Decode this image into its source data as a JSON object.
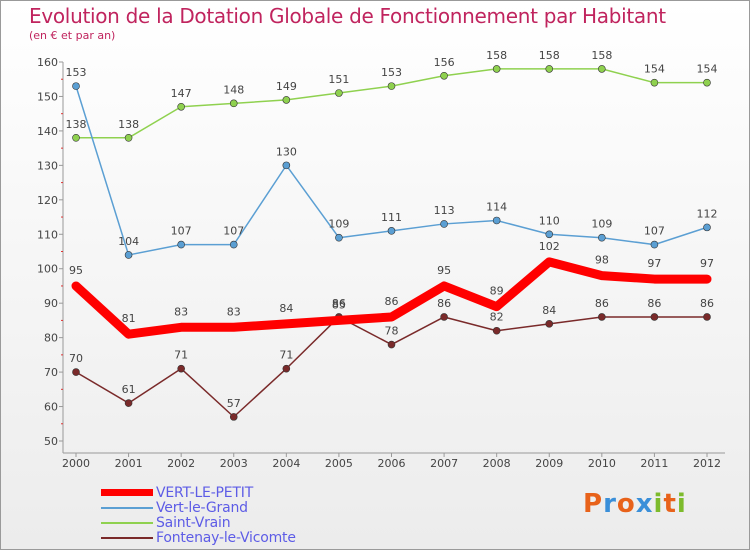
{
  "title": "Evolution de la Dotation Globale de Fonctionnement par Habitant",
  "subtitle": "(en € et par an)",
  "brand": {
    "text": "Proxiti",
    "letters": [
      "P",
      "r",
      "o",
      "x",
      "i",
      "t",
      "i"
    ],
    "colors": [
      "#e8621a",
      "#3a8fd9",
      "#e8621a",
      "#3a8fd9",
      "#7dbb2c",
      "#e8621a",
      "#7dbb2c"
    ]
  },
  "chart_data": {
    "type": "line",
    "x": [
      2000,
      2001,
      2002,
      2003,
      2004,
      2005,
      2006,
      2007,
      2008,
      2009,
      2010,
      2011,
      2012
    ],
    "ylim": [
      50,
      160
    ],
    "yticks": [
      50,
      60,
      70,
      80,
      90,
      100,
      110,
      120,
      130,
      140,
      150,
      160
    ],
    "grid": false,
    "legend": "bottom-left",
    "series": [
      {
        "name": "VERT-LE-PETIT",
        "color": "#ff0000",
        "values": [
          95,
          81,
          83,
          83,
          84,
          85,
          86,
          95,
          89,
          102,
          98,
          97,
          97
        ]
      },
      {
        "name": "Vert-le-Grand",
        "color": "#5b9fd3",
        "values": [
          153,
          104,
          107,
          107,
          130,
          109,
          111,
          113,
          114,
          110,
          109,
          107,
          112
        ]
      },
      {
        "name": "Saint-Vrain",
        "color": "#8fd14f",
        "values": [
          138,
          138,
          147,
          148,
          149,
          151,
          153,
          156,
          158,
          158,
          158,
          154,
          154
        ]
      },
      {
        "name": "Fontenay-le-Vicomte",
        "color": "#7a2a2a",
        "values": [
          70,
          61,
          71,
          57,
          71,
          86,
          78,
          86,
          82,
          84,
          86,
          86,
          86
        ]
      }
    ]
  }
}
